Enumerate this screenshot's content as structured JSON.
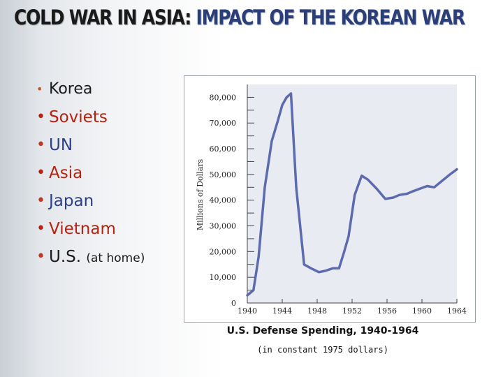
{
  "slide": {
    "title_part1": "COLD WAR IN ASIA:",
    "title_part2": "IMPACT OF THE KOREAN WAR",
    "bullets": {
      "korea": "Korea",
      "soviets": "Soviets",
      "un": "UN",
      "asia": "Asia",
      "japan": "Japan",
      "vietnam": "Vietnam",
      "us": "U.S.",
      "us_note": "(at home)"
    },
    "bullet_glyph": "•",
    "colors": {
      "red_text": "#b82010",
      "blue_text": "#2a3f8a",
      "title_accent": "#2a3f7a",
      "chart_line": "#5c6bb0"
    }
  },
  "chart_data": {
    "type": "line",
    "title": "U.S. Defense Spending, 1940-1964",
    "subtitle": "(in constant 1975 dollars)",
    "xlabel": "",
    "ylabel": "Millions of Dollars",
    "x_ticks": [
      "1940",
      "1944",
      "1948",
      "1952",
      "1956",
      "1960",
      "1964"
    ],
    "y_ticks": [
      "0",
      "10,000",
      "20,000",
      "30,000",
      "40,000",
      "50,000",
      "60,000",
      "70,000",
      "80,000"
    ],
    "xlim": [
      1940,
      1964
    ],
    "ylim": [
      0,
      85000
    ],
    "grid": false,
    "series": [
      {
        "x": [
          1940,
          1940.7,
          1941.3,
          1942,
          1942.8,
          1943.5,
          1944,
          1944.5,
          1945,
          1945.6,
          1946.5,
          1947.3,
          1948.2,
          1948.9,
          1949.8,
          1950.5,
          1951.1,
          1951.6,
          1952.3,
          1953.1,
          1953.8,
          1954.8,
          1955.8,
          1956.7,
          1957.4,
          1958.3,
          1959,
          1959.8,
          1960.6,
          1961.4,
          1962.3,
          1963.2,
          1964
        ],
        "y": [
          3000,
          5000,
          18000,
          45000,
          63000,
          71000,
          77000,
          80000,
          81500,
          45000,
          15000,
          13500,
          12000,
          12500,
          13500,
          13500,
          20000,
          26000,
          42000,
          49500,
          48000,
          44500,
          40500,
          41000,
          42000,
          42500,
          43500,
          44500,
          45500,
          45000,
          47500,
          50000,
          52000
        ]
      }
    ]
  }
}
